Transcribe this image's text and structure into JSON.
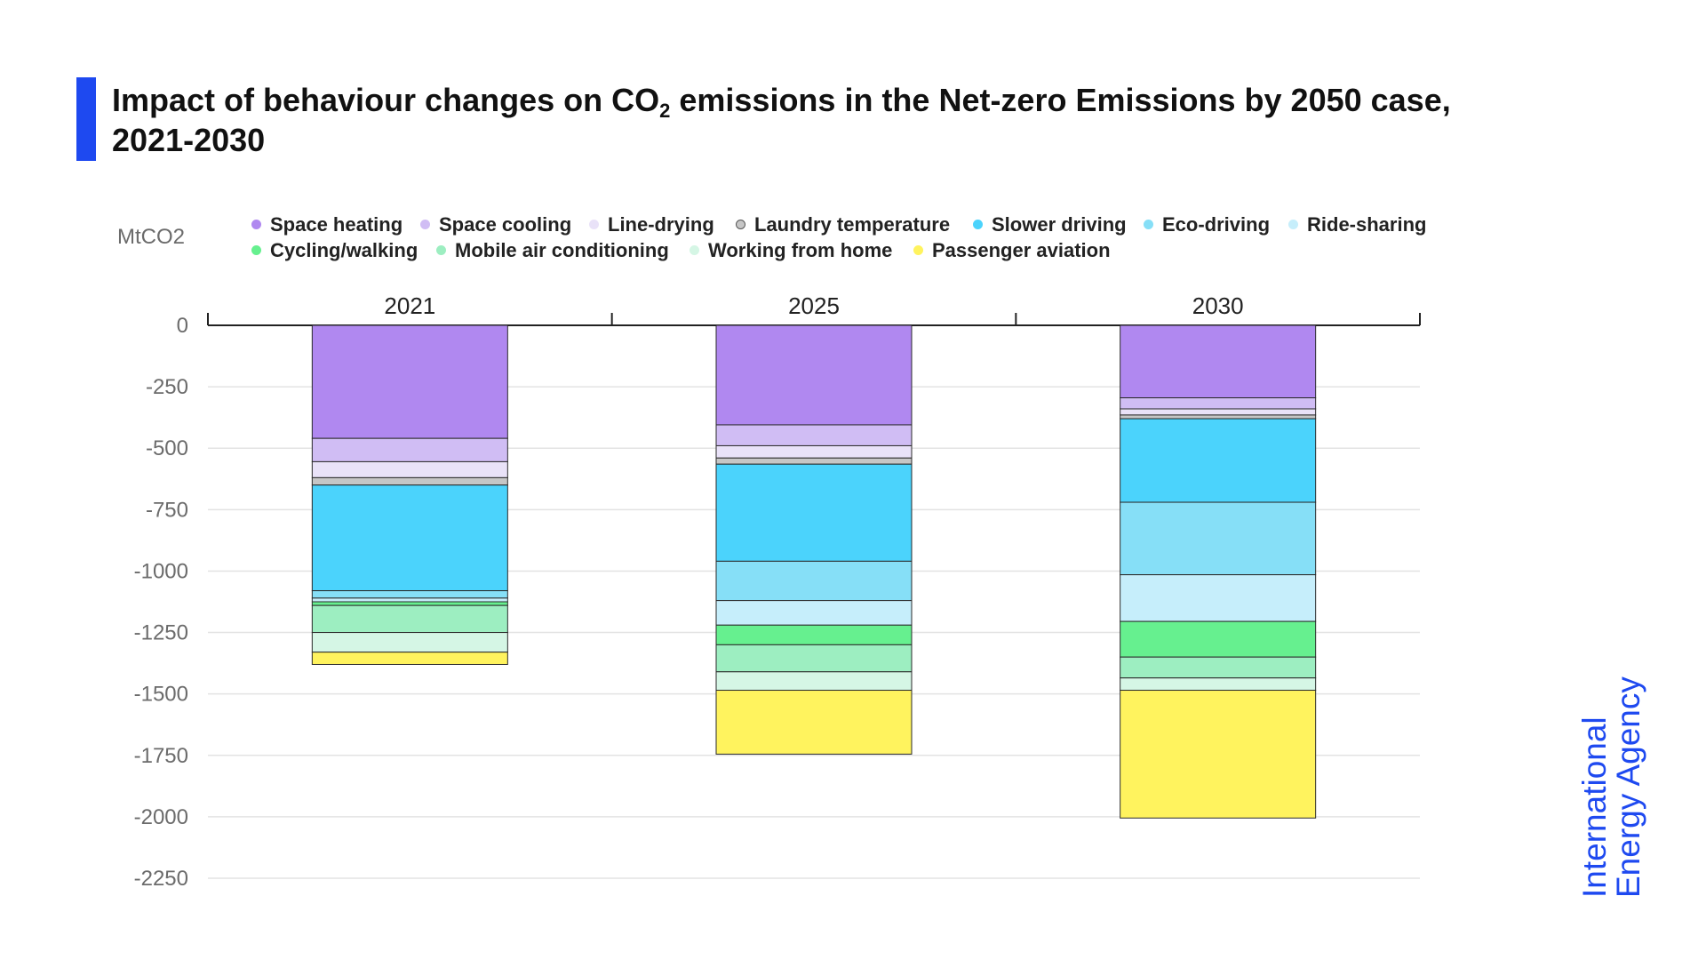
{
  "title": {
    "part1": "Impact of behaviour changes on CO",
    "subscript": "2",
    "part2": " emissions in the Net-zero Emissions by 2050 case,",
    "line2": "2021-2030"
  },
  "logo": {
    "line1": "International",
    "line2": "Energy Agency"
  },
  "colors": {
    "accent": "#1e49f0"
  },
  "chart_data": {
    "type": "bar",
    "stacked": true,
    "title": "Impact of behaviour changes on CO2 emissions in the Net-zero Emissions by 2050 case, 2021-2030",
    "ylabel": "MtCO2",
    "xlabel": "",
    "categories": [
      "2021",
      "2025",
      "2030"
    ],
    "x_axis_position": "top",
    "ylim": [
      -2250,
      0
    ],
    "yticks": [
      0,
      -250,
      -500,
      -750,
      -1000,
      -1250,
      -1500,
      -1750,
      -2000,
      -2250
    ],
    "ytick_labels": [
      "0",
      "-250",
      "-500",
      "-750",
      "-1000",
      "-1250",
      "-1500",
      "-1750",
      "-2000",
      "-2250"
    ],
    "grid": true,
    "legend_position": "top",
    "series": [
      {
        "name": "Space heating",
        "color": "#b088f0",
        "values": [
          -460,
          -405,
          -295
        ]
      },
      {
        "name": "Space cooling",
        "color": "#d0bdf4",
        "values": [
          -95,
          -85,
          -45
        ]
      },
      {
        "name": "Line-drying",
        "color": "#e9e2f8",
        "values": [
          -65,
          -50,
          -25
        ]
      },
      {
        "name": "Laundry temperature",
        "color": "#c6c6c6",
        "values": [
          -30,
          -25,
          -15
        ]
      },
      {
        "name": "Slower driving",
        "color": "#4bd3fc",
        "values": [
          -430,
          -395,
          -340
        ]
      },
      {
        "name": "Eco-driving",
        "color": "#86dff7",
        "values": [
          -30,
          -160,
          -295
        ]
      },
      {
        "name": "Ride-sharing",
        "color": "#c6eefb",
        "values": [
          -15,
          -100,
          -190
        ]
      },
      {
        "name": "Cycling/walking",
        "color": "#66f08f",
        "values": [
          -15,
          -80,
          -145
        ]
      },
      {
        "name": "Mobile air conditioning",
        "color": "#9deec1",
        "values": [
          -110,
          -110,
          -85
        ]
      },
      {
        "name": "Working from home",
        "color": "#d5f6e5",
        "values": [
          -80,
          -75,
          -50
        ]
      },
      {
        "name": "Passenger aviation",
        "color": "#fff35e",
        "values": [
          -50,
          -260,
          -520
        ]
      }
    ]
  }
}
